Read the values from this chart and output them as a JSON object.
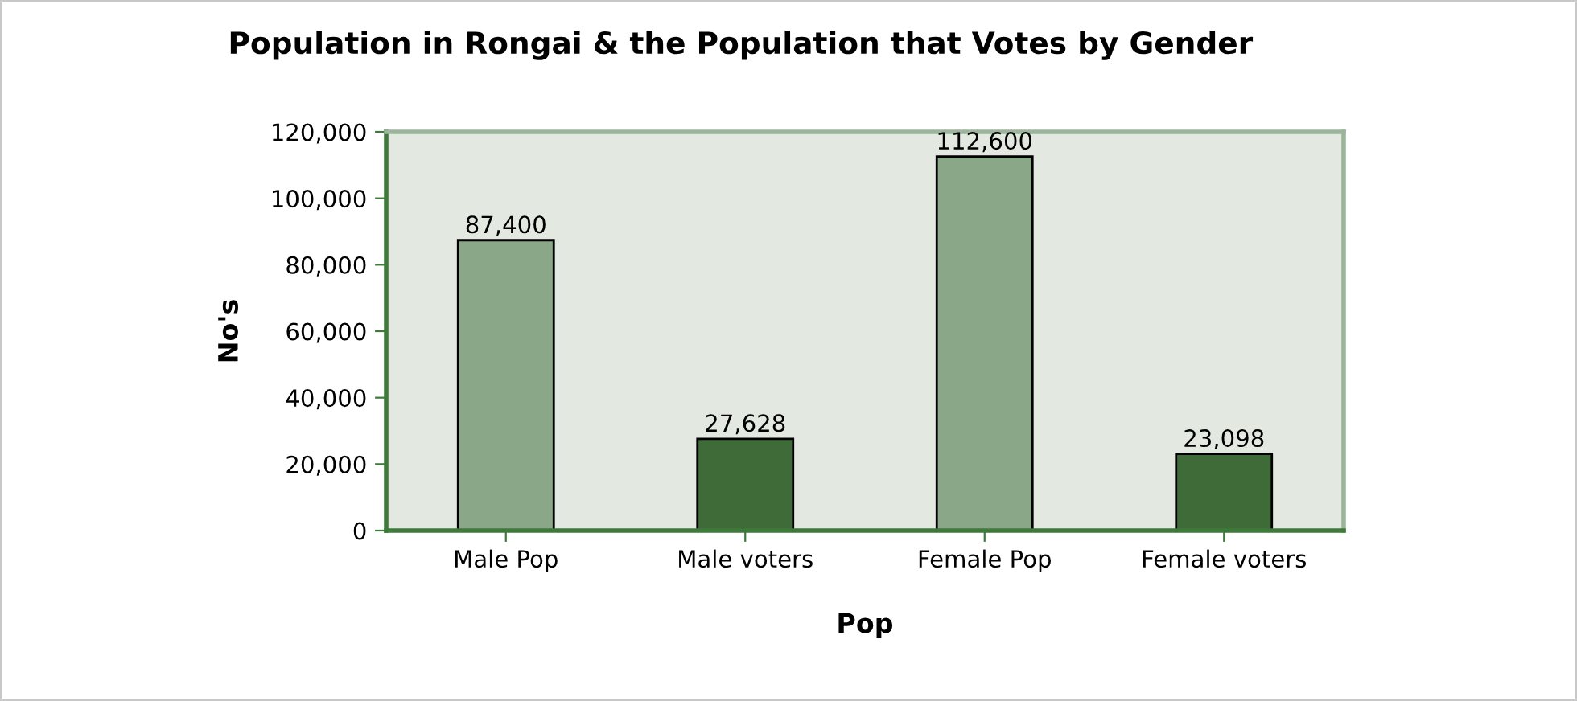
{
  "chart_data": {
    "type": "bar",
    "title": "Population in Rongai & the Population that Votes by Gender",
    "xlabel": "Pop",
    "ylabel": "No's",
    "categories": [
      "Male Pop",
      "Male voters",
      "Female Pop",
      "Female voters"
    ],
    "values": [
      87400,
      27628,
      112600,
      23098
    ],
    "colors": [
      "#8aa888",
      "#3e6b38",
      "#8aa888",
      "#3e6b38"
    ],
    "value_labels": [
      "87,400",
      "27,628",
      "112,600",
      "23,098"
    ],
    "ylim": [
      0,
      120000
    ],
    "yticks": [
      {
        "value": 0,
        "label": "0"
      },
      {
        "value": 20000,
        "label": "20,000"
      },
      {
        "value": 40000,
        "label": "40,000"
      },
      {
        "value": 60000,
        "label": "60,000"
      },
      {
        "value": 80000,
        "label": "80,000"
      },
      {
        "value": 100000,
        "label": "100,000"
      },
      {
        "value": 120000,
        "label": "120,000"
      }
    ],
    "grid": false,
    "legend": false
  }
}
